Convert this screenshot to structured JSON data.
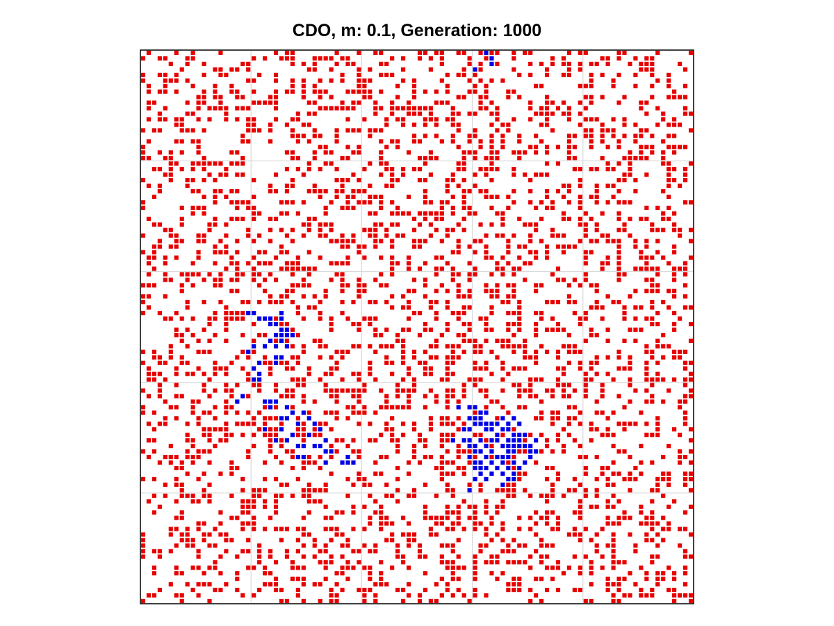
{
  "chart_data": {
    "type": "scatter",
    "title": "CDO, m: 0.1, Generation: 1000",
    "xlabel": "",
    "ylabel": "",
    "grid_size": [
      100,
      100
    ],
    "xlim": [
      0,
      100
    ],
    "ylim": [
      0,
      100
    ],
    "grid": true,
    "grid_divisions": 5,
    "axes_ticks_shown": false,
    "legend": "none",
    "empty_color": "#ffffff",
    "series": [
      {
        "color": "#e60000",
        "density_estimate": 0.3,
        "note_cells": "approximate: individual red cells are not enumerable; rendered as a field at the estimated density"
      },
      {
        "color": "#0000e6",
        "cells": [
          [
            62,
            0
          ],
          [
            63,
            1
          ],
          [
            63,
            2
          ],
          [
            60,
            3
          ],
          [
            19,
            47
          ],
          [
            20,
            47
          ],
          [
            21,
            48
          ],
          [
            22,
            48
          ],
          [
            23,
            48
          ],
          [
            25,
            47
          ],
          [
            25,
            48
          ],
          [
            23,
            49
          ],
          [
            24,
            49
          ],
          [
            25,
            50
          ],
          [
            26,
            50
          ],
          [
            24,
            51
          ],
          [
            23,
            52
          ],
          [
            25,
            52
          ],
          [
            22,
            53
          ],
          [
            24,
            53
          ],
          [
            26,
            53
          ],
          [
            20,
            53
          ],
          [
            19,
            54
          ],
          [
            25,
            51
          ],
          [
            26,
            51
          ],
          [
            27,
            51
          ],
          [
            24,
            55
          ],
          [
            25,
            55
          ],
          [
            24,
            56
          ],
          [
            25,
            52
          ],
          [
            21,
            56
          ],
          [
            20,
            57
          ],
          [
            21,
            58
          ],
          [
            20,
            59
          ],
          [
            21,
            59
          ],
          [
            17,
            63
          ],
          [
            18,
            62
          ],
          [
            22,
            63
          ],
          [
            23,
            63
          ],
          [
            24,
            63
          ],
          [
            23,
            64
          ],
          [
            26,
            64
          ],
          [
            27,
            65
          ],
          [
            25,
            66
          ],
          [
            26,
            66
          ],
          [
            28,
            67
          ],
          [
            29,
            65
          ],
          [
            30,
            66
          ],
          [
            31,
            67
          ],
          [
            22,
            68
          ],
          [
            25,
            68
          ],
          [
            27,
            69
          ],
          [
            30,
            69
          ],
          [
            32,
            68
          ],
          [
            33,
            70
          ],
          [
            24,
            70
          ],
          [
            26,
            70
          ],
          [
            28,
            71
          ],
          [
            29,
            71
          ],
          [
            31,
            71
          ],
          [
            32,
            71
          ],
          [
            33,
            72
          ],
          [
            28,
            73
          ],
          [
            29,
            73
          ],
          [
            34,
            72
          ],
          [
            33,
            74
          ],
          [
            36,
            74
          ],
          [
            37,
            74
          ],
          [
            38,
            74
          ],
          [
            37,
            73
          ],
          [
            57,
            64
          ],
          [
            59,
            64
          ],
          [
            60,
            64
          ],
          [
            61,
            65
          ],
          [
            62,
            65
          ],
          [
            59,
            66
          ],
          [
            60,
            66
          ],
          [
            61,
            66
          ],
          [
            60,
            67
          ],
          [
            61,
            67
          ],
          [
            62,
            67
          ],
          [
            63,
            67
          ],
          [
            64,
            67
          ],
          [
            65,
            66
          ],
          [
            66,
            67
          ],
          [
            67,
            66
          ],
          [
            68,
            67
          ],
          [
            58,
            68
          ],
          [
            59,
            68
          ],
          [
            62,
            68
          ],
          [
            63,
            68
          ],
          [
            64,
            69
          ],
          [
            65,
            68
          ],
          [
            66,
            68
          ],
          [
            67,
            69
          ],
          [
            68,
            69
          ],
          [
            69,
            69
          ],
          [
            56,
            70
          ],
          [
            58,
            70
          ],
          [
            59,
            70
          ],
          [
            61,
            70
          ],
          [
            63,
            70
          ],
          [
            64,
            70
          ],
          [
            66,
            70
          ],
          [
            67,
            70
          ],
          [
            68,
            70
          ],
          [
            59,
            71
          ],
          [
            60,
            71
          ],
          [
            62,
            71
          ],
          [
            65,
            71
          ],
          [
            66,
            71
          ],
          [
            67,
            71
          ],
          [
            68,
            71
          ],
          [
            69,
            71
          ],
          [
            70,
            71
          ],
          [
            71,
            70
          ],
          [
            60,
            72
          ],
          [
            61,
            72
          ],
          [
            63,
            72
          ],
          [
            66,
            72
          ],
          [
            67,
            72
          ],
          [
            70,
            72
          ],
          [
            71,
            72
          ],
          [
            59,
            73
          ],
          [
            62,
            73
          ],
          [
            64,
            73
          ],
          [
            65,
            73
          ],
          [
            66,
            73
          ],
          [
            70,
            73
          ],
          [
            60,
            74
          ],
          [
            61,
            74
          ],
          [
            63,
            74
          ],
          [
            65,
            74
          ],
          [
            67,
            74
          ],
          [
            69,
            74
          ],
          [
            60,
            75
          ],
          [
            61,
            75
          ],
          [
            62,
            75
          ],
          [
            64,
            75
          ],
          [
            66,
            75
          ],
          [
            68,
            75
          ],
          [
            61,
            76
          ],
          [
            63,
            76
          ],
          [
            65,
            76
          ],
          [
            67,
            76
          ],
          [
            60,
            77
          ],
          [
            62,
            77
          ],
          [
            66,
            77
          ],
          [
            67,
            77
          ],
          [
            59,
            79
          ],
          [
            65,
            78
          ]
        ]
      }
    ]
  }
}
